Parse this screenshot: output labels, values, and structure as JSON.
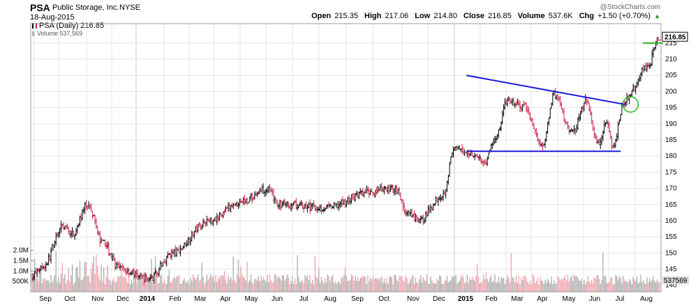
{
  "header": {
    "symbol": "PSA",
    "company": "Public Storage, Inc.",
    "exchange": "NYSE",
    "date": "18-Aug-2015",
    "watermark": "@StockCharts.com",
    "open_label": "Open",
    "open": "215.35",
    "high_label": "High",
    "high": "217.06",
    "low_label": "Low",
    "low": "214.80",
    "close_label": "Close",
    "close": "216.85",
    "volume_label": "Volume",
    "volume": "537.6K",
    "chg_label": "Chg",
    "chg": "+1.50 (+0.70%)"
  },
  "legend": {
    "price_label": "PSA (Daily) 216.85",
    "volume_label": "Volume 537,569"
  },
  "colors": {
    "up": "#000000",
    "down": "#cc2244",
    "volume_up": "#b0b0b0",
    "volume_down": "#f0a8b0",
    "trendline": "#1a1adb",
    "breakout": "#22bb22",
    "grid": "#e4e4e4"
  },
  "chart_data": {
    "type": "ohlc",
    "x_ticks": [
      "Sep",
      "Oct",
      "Nov",
      "Dec",
      "2014",
      "Feb",
      "Mar",
      "Apr",
      "May",
      "Jun",
      "Jul",
      "Aug",
      "Sep",
      "Oct",
      "Nov",
      "Dec",
      "2015",
      "Feb",
      "Mar",
      "Apr",
      "May",
      "Jun",
      "Jul",
      "Aug"
    ],
    "y_ticks": [
      140,
      145,
      150,
      155,
      160,
      165,
      170,
      175,
      180,
      185,
      190,
      195,
      200,
      205,
      210,
      215
    ],
    "y_range": [
      138,
      221
    ],
    "volume_ticks": [
      "500K",
      "1.0M",
      "1.5M",
      "2.0M"
    ],
    "volume_tick_values": [
      500000,
      1000000,
      1500000,
      2000000
    ],
    "volume_range": [
      0,
      4000000
    ],
    "last_price_label": "216.85",
    "last_volume_label": "537569",
    "price_anchors": [
      {
        "t": 0.0,
        "p": 143
      },
      {
        "t": 0.02,
        "p": 146
      },
      {
        "t": 0.05,
        "p": 158
      },
      {
        "t": 0.07,
        "p": 156
      },
      {
        "t": 0.095,
        "p": 165
      },
      {
        "t": 0.12,
        "p": 153
      },
      {
        "t": 0.15,
        "p": 145
      },
      {
        "t": 0.2,
        "p": 142
      },
      {
        "t": 0.24,
        "p": 150
      },
      {
        "t": 0.3,
        "p": 160
      },
      {
        "t": 0.36,
        "p": 166
      },
      {
        "t": 0.4,
        "p": 170
      },
      {
        "t": 0.42,
        "p": 165
      },
      {
        "t": 0.5,
        "p": 164
      },
      {
        "t": 0.58,
        "p": 169
      },
      {
        "t": 0.62,
        "p": 170
      },
      {
        "t": 0.64,
        "p": 162
      },
      {
        "t": 0.66,
        "p": 160
      },
      {
        "t": 0.7,
        "p": 168
      },
      {
        "t": 0.72,
        "p": 182
      },
      {
        "t": 0.75,
        "p": 181
      },
      {
        "t": 0.77,
        "p": 178
      },
      {
        "t": 0.79,
        "p": 185
      },
      {
        "t": 0.81,
        "p": 197
      },
      {
        "t": 0.84,
        "p": 195
      },
      {
        "t": 0.87,
        "p": 183
      },
      {
        "t": 0.89,
        "p": 199
      },
      {
        "t": 0.92,
        "p": 187
      },
      {
        "t": 0.945,
        "p": 197
      },
      {
        "t": 0.965,
        "p": 184
      },
      {
        "t": 0.98,
        "p": 191
      },
      {
        "t": 0.99,
        "p": 183
      },
      {
        "t": 1.01,
        "p": 197
      },
      {
        "t": 1.05,
        "p": 208
      },
      {
        "t": 1.07,
        "p": 217
      }
    ],
    "trendline_upper": {
      "x_start": "2015-01-15",
      "y_start": 205,
      "x_end": "2015-07-20",
      "y_end": 196
    },
    "support_line": {
      "x_start": "2015-01-15",
      "y_start": 181.5,
      "x_end": "2015-07-15",
      "y_end": 181.5
    },
    "breakout_marker": {
      "x": "2015-07-20",
      "y": 196
    },
    "resistance_marker": {
      "y": 215
    }
  }
}
